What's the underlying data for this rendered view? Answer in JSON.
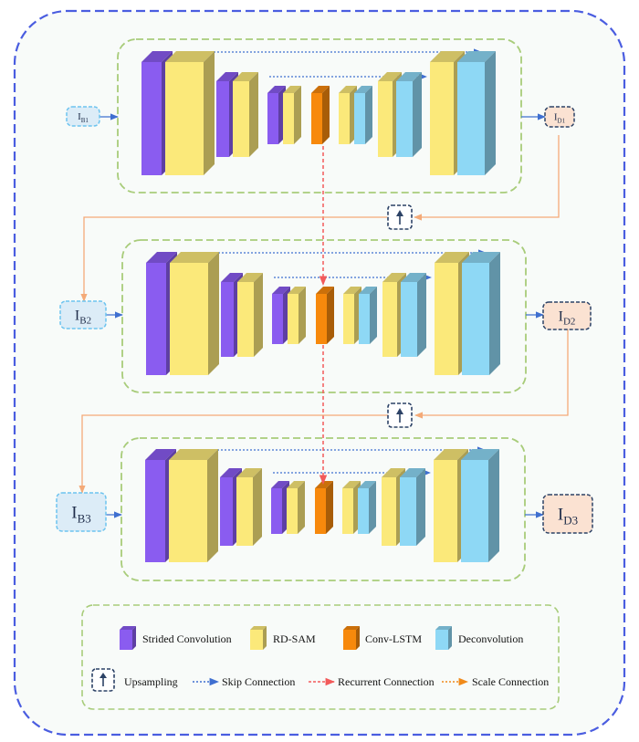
{
  "inputs": [
    {
      "base": "I",
      "sub": "B1"
    },
    {
      "base": "I",
      "sub": "B2"
    },
    {
      "base": "I",
      "sub": "B3"
    }
  ],
  "outputs": [
    {
      "base": "I",
      "sub": "D1"
    },
    {
      "base": "I",
      "sub": "D2"
    },
    {
      "base": "I",
      "sub": "D3"
    }
  ],
  "legend": {
    "strided": "Strided Convolution",
    "rdsam": "RD-SAM",
    "convlstm": "Conv-LSTM",
    "deconv": "Deconvolution",
    "upsampling": "Upsampling",
    "skip": "Skip Connection",
    "recurrent": "Recurrent Connection",
    "scale": "Scale Connection"
  },
  "colors": {
    "strided": "#8a5cf0",
    "rdsam": "#fbe97a",
    "convlstm": "#f7890c",
    "deconv": "#8ed8f5",
    "outer_border": "#4a5de0",
    "stage_border": "#a8cc7a",
    "skip": "#3f6fd0",
    "recurrent": "#f25a5a",
    "scale": "#f4aa78",
    "upsample_border": "#2c4266"
  }
}
